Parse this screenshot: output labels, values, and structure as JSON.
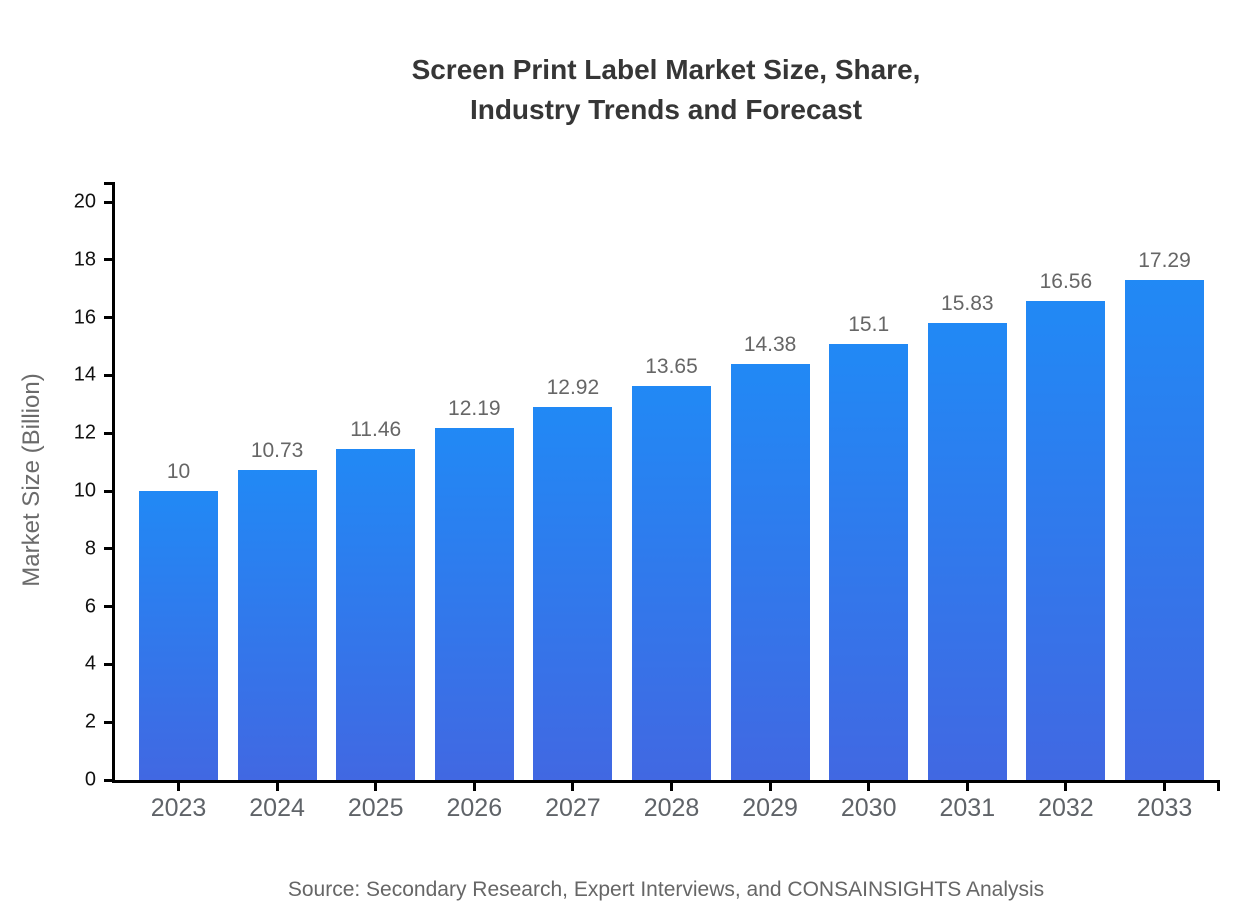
{
  "chart_data": {
    "type": "bar",
    "title": "Screen Print Label Market Size, Share, Industry Trends and Forecast",
    "title_lines": [
      "Screen Print Label Market Size, Share,",
      "Industry Trends and Forecast"
    ],
    "categories": [
      "2023",
      "2024",
      "2025",
      "2026",
      "2027",
      "2028",
      "2029",
      "2030",
      "2031",
      "2032",
      "2033"
    ],
    "values": [
      10,
      10.73,
      11.46,
      12.19,
      12.92,
      13.65,
      14.38,
      15.1,
      15.83,
      16.56,
      17.29
    ],
    "xlabel": "",
    "ylabel": "Market Size (Billion)",
    "ylim": [
      0,
      20
    ],
    "ytick_step": 2,
    "grid": false,
    "legend": "none",
    "colors": {
      "bar_gradient_top": "#2189F5",
      "bar_gradient_bottom": "#4168E2",
      "axis": "#000000",
      "title_text": "#363636",
      "value_label_text": "#666666",
      "category_label_text": "#5f6368",
      "ytick_label_text": "#111111",
      "source_text": "#666666"
    }
  },
  "footer": {
    "source": "Source: Secondary Research, Expert Interviews, and CONSAINSIGHTS Analysis"
  }
}
